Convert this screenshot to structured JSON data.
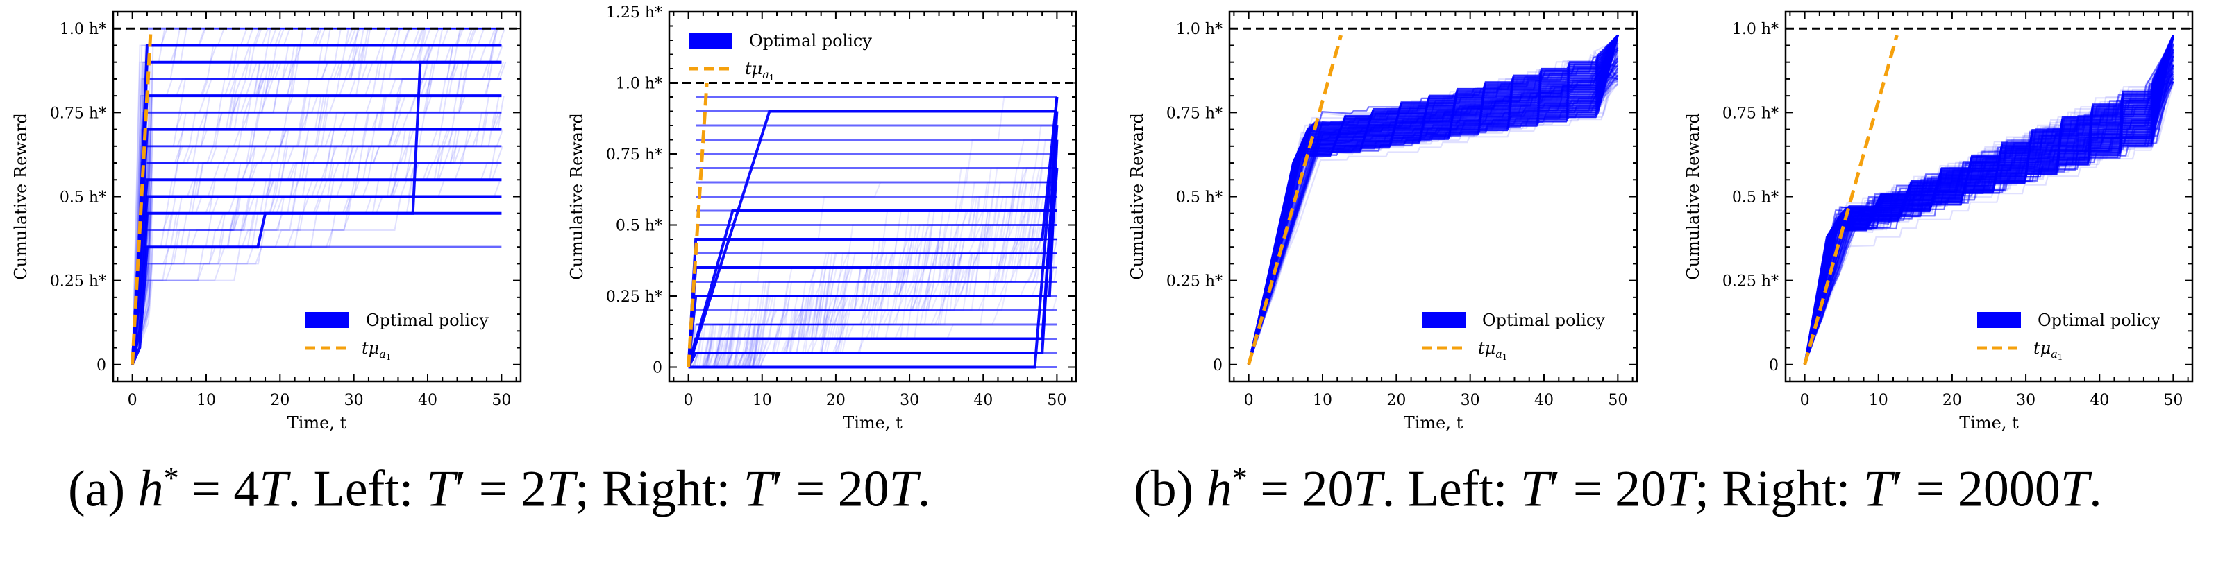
{
  "figure": {
    "captions": [
      {
        "label": "(a)",
        "lhs": "h",
        "sup": "*",
        "eq": " = 4",
        "T": "T",
        "rest1": ". Left: ",
        "left_T": "T",
        "prime": "′",
        "left_eq": " = 2",
        "left_val_T": "T",
        "sep": "; Right: ",
        "right_T": "T",
        "right_eq": " = 20",
        "right_val_T": "T",
        "end": "."
      },
      {
        "label": "(b)",
        "lhs": "h",
        "sup": "*",
        "eq": " = 20",
        "T": "T",
        "rest1": ". Left: ",
        "left_T": "T",
        "prime": "′",
        "left_eq": " = 20",
        "left_val_T": "T",
        "sep": "; Right: ",
        "right_T": "T",
        "right_eq": " = 2000",
        "right_val_T": "T",
        "end": "."
      }
    ]
  },
  "colors": {
    "trajectory": "#0000ff",
    "reference_line": "#f5a00c",
    "target_line": "#000000"
  },
  "chart_data": [
    {
      "type": "line",
      "panel": "(a) left",
      "title": "",
      "xlabel": "Time, t",
      "ylabel": "Cumulative Reward",
      "xlim": [
        -2.6,
        52.6
      ],
      "ylim": [
        -0.05,
        1.05
      ],
      "xticks": [
        0,
        10,
        20,
        30,
        40,
        50
      ],
      "yticks": [
        0,
        0.25,
        0.5,
        0.75,
        1.0
      ],
      "yticklabels": [
        "0",
        "0.25 h*",
        "0.5 h*",
        "0.75 h*",
        "1.0 h*"
      ],
      "legend": {
        "placement": "lower-right",
        "entries": [
          "Optimal policy",
          "tμa1"
        ]
      },
      "hline": {
        "y": 1.0,
        "label": "h*",
        "style": "dashed"
      },
      "reference_line": {
        "name": "tμa1",
        "x": [
          0,
          2.5
        ],
        "y": [
          0,
          1.0
        ]
      },
      "optimal_policy_plateaus": [
        0.35,
        0.45,
        0.5,
        0.55,
        0.6,
        0.65,
        0.7,
        0.75,
        0.8,
        0.85,
        0.9,
        0.95,
        1.0
      ],
      "bold_trajectories": [
        {
          "x": [
            0,
            1,
            2,
            38,
            39,
            50
          ],
          "y": [
            0,
            0.1,
            0.45,
            0.45,
            0.9,
            0.9
          ]
        },
        {
          "x": [
            0,
            1,
            2,
            17,
            18,
            50
          ],
          "y": [
            0,
            0.05,
            0.35,
            0.35,
            0.45,
            0.45
          ]
        },
        {
          "x": [
            0,
            1,
            2,
            50
          ],
          "y": [
            0,
            0.2,
            0.5,
            0.5
          ]
        },
        {
          "x": [
            0,
            1,
            2,
            50
          ],
          "y": [
            0,
            0.3,
            0.55,
            0.55
          ]
        },
        {
          "x": [
            0,
            1,
            2,
            50
          ],
          "y": [
            0,
            0.3,
            0.7,
            0.7
          ]
        },
        {
          "x": [
            0,
            1,
            2,
            50
          ],
          "y": [
            0,
            0.4,
            0.8,
            0.8
          ]
        },
        {
          "x": [
            0,
            1,
            2,
            50
          ],
          "y": [
            0,
            0.4,
            0.9,
            0.9
          ]
        },
        {
          "x": [
            0,
            1,
            2,
            50
          ],
          "y": [
            0,
            0.4,
            0.95,
            0.95
          ]
        }
      ],
      "n_faint_trajectories": 120,
      "faint_model": {
        "early_end": 2.5,
        "step_scale": 0.05,
        "regime": "early-rise"
      }
    },
    {
      "type": "line",
      "panel": "(a) right",
      "title": "",
      "xlabel": "Time, t",
      "ylabel": "Cumulative Reward",
      "xlim": [
        -2.6,
        52.6
      ],
      "ylim": [
        -0.05,
        1.25
      ],
      "xticks": [
        0,
        10,
        20,
        30,
        40,
        50
      ],
      "yticks": [
        0,
        0.25,
        0.5,
        0.75,
        1.0,
        1.25
      ],
      "yticklabels": [
        "0",
        "0.25 h*",
        "0.5 h*",
        "0.75 h*",
        "1.0 h*",
        "1.25 h*"
      ],
      "legend": {
        "placement": "upper-left",
        "entries": [
          "Optimal policy",
          "tμa1"
        ]
      },
      "hline": {
        "y": 1.0,
        "label": "h*",
        "style": "dashed"
      },
      "reference_line": {
        "name": "tμa1",
        "x": [
          0,
          2.5
        ],
        "y": [
          0,
          1.0
        ]
      },
      "optimal_policy_plateaus": [
        0,
        0.05,
        0.1,
        0.15,
        0.2,
        0.25,
        0.3,
        0.35,
        0.4,
        0.45,
        0.5,
        0.55,
        0.6,
        0.65,
        0.7,
        0.75,
        0.8,
        0.85,
        0.9,
        0.95
      ],
      "bold_trajectories": [
        {
          "x": [
            0,
            47,
            50
          ],
          "y": [
            0,
            0,
            0.95
          ]
        },
        {
          "x": [
            0,
            1,
            48,
            50
          ],
          "y": [
            0,
            0.05,
            0.05,
            0.9
          ]
        },
        {
          "x": [
            0,
            1,
            48,
            50
          ],
          "y": [
            0,
            0.1,
            0.1,
            0.85
          ]
        },
        {
          "x": [
            0,
            1,
            49,
            50
          ],
          "y": [
            0,
            0.25,
            0.25,
            0.8
          ]
        },
        {
          "x": [
            0,
            1,
            49,
            50
          ],
          "y": [
            0,
            0.35,
            0.35,
            0.7
          ]
        },
        {
          "x": [
            0,
            1,
            48,
            50
          ],
          "y": [
            0,
            0.45,
            0.45,
            0.95
          ]
        },
        {
          "x": [
            0,
            6,
            50
          ],
          "y": [
            0,
            0.55,
            0.55
          ]
        },
        {
          "x": [
            0,
            11,
            50
          ],
          "y": [
            0,
            0.9,
            0.9
          ]
        }
      ],
      "n_faint_trajectories": 120,
      "faint_model": {
        "early_end": 50,
        "step_scale": 0.05,
        "regime": "uniform-stairs"
      }
    },
    {
      "type": "line",
      "panel": "(b) left",
      "title": "",
      "xlabel": "Time, t",
      "ylabel": "Cumulative Reward",
      "xlim": [
        -2.6,
        52.6
      ],
      "ylim": [
        -0.05,
        1.05
      ],
      "xticks": [
        0,
        10,
        20,
        30,
        40,
        50
      ],
      "yticks": [
        0,
        0.25,
        0.5,
        0.75,
        1.0
      ],
      "yticklabels": [
        "0",
        "0.25 h*",
        "0.5 h*",
        "0.75 h*",
        "1.0 h*"
      ],
      "legend": {
        "placement": "lower-right",
        "entries": [
          "Optimal policy",
          "tμa1"
        ]
      },
      "hline": {
        "y": 1.0,
        "label": "h*",
        "style": "dashed"
      },
      "reference_line": {
        "name": "tμa1",
        "x": [
          0,
          12.5
        ],
        "y": [
          0,
          0.98
        ]
      },
      "bundle": {
        "knee_t": 8,
        "knee_y_low": 0.62,
        "knee_y_high": 0.72,
        "plateau_end_t": 47,
        "plateau_end_y_low": 0.75,
        "plateau_end_y_high": 0.92,
        "final_t": 50,
        "final_y": 0.98
      },
      "n_faint_trajectories": 90
    },
    {
      "type": "line",
      "panel": "(b) right",
      "title": "",
      "xlabel": "Time, t",
      "ylabel": "Cumulative Reward",
      "xlim": [
        -2.6,
        52.6
      ],
      "ylim": [
        -0.05,
        1.05
      ],
      "xticks": [
        0,
        10,
        20,
        30,
        40,
        50
      ],
      "yticks": [
        0,
        0.25,
        0.5,
        0.75,
        1.0
      ],
      "yticklabels": [
        "0",
        "0.25 h*",
        "0.5 h*",
        "0.75 h*",
        "1.0 h*"
      ],
      "legend": {
        "placement": "lower-right",
        "entries": [
          "Optimal policy",
          "tμa1"
        ]
      },
      "hline": {
        "y": 1.0,
        "label": "h*",
        "style": "dashed"
      },
      "reference_line": {
        "name": "tμa1",
        "x": [
          0,
          12.5
        ],
        "y": [
          0,
          0.98
        ]
      },
      "bundle": {
        "knee_t": 5,
        "knee_y_low": 0.4,
        "knee_y_high": 0.47,
        "plateau_end_t": 47,
        "plateau_end_y_low": 0.68,
        "plateau_end_y_high": 0.85,
        "final_t": 50,
        "final_y": 0.98
      },
      "n_faint_trajectories": 90
    }
  ]
}
